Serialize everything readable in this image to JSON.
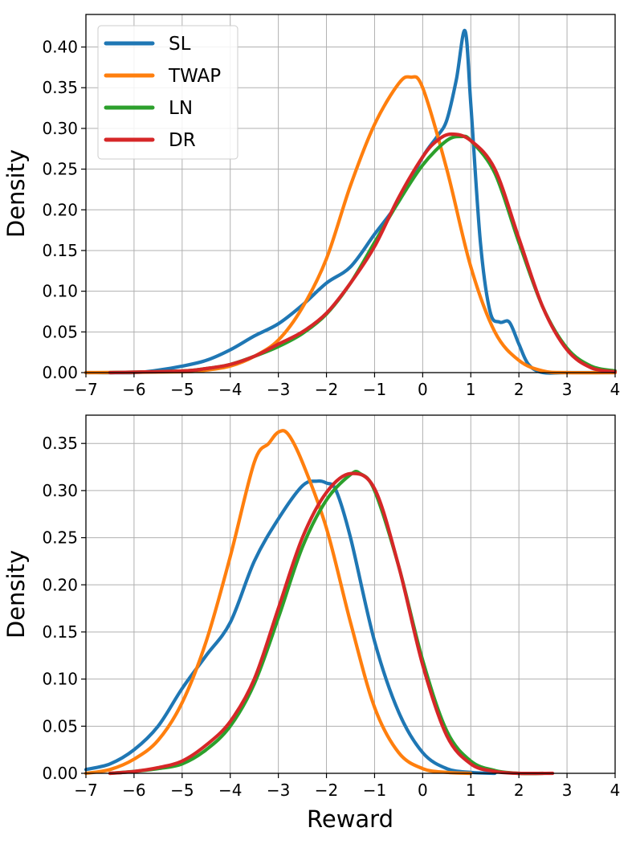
{
  "chart_data": [
    {
      "type": "line",
      "panel": "top",
      "title": "",
      "xlabel": "",
      "ylabel": "Density",
      "xlim": [
        -7,
        4
      ],
      "ylim": [
        0,
        0.44
      ],
      "xticks": [
        -7,
        -6,
        -5,
        -4,
        -3,
        -2,
        -1,
        0,
        1,
        2,
        3,
        4
      ],
      "xtick_labels": [
        "−7",
        "−6",
        "−5",
        "−4",
        "−3",
        "−2",
        "−1",
        "0",
        "1",
        "2",
        "3",
        "4"
      ],
      "yticks": [
        0,
        0.05,
        0.1,
        0.15,
        0.2,
        0.25,
        0.3,
        0.35,
        0.4
      ],
      "ytick_labels": [
        "0.00",
        "0.05",
        "0.10",
        "0.15",
        "0.20",
        "0.25",
        "0.30",
        "0.35",
        "0.40"
      ],
      "grid": true,
      "legend_position": "top-left",
      "series": [
        {
          "name": "SL",
          "color": "#1f77b4",
          "x": [
            -7.0,
            -6.0,
            -5.5,
            -5.0,
            -4.5,
            -4.0,
            -3.5,
            -3.0,
            -2.5,
            -2.0,
            -1.5,
            -1.0,
            -0.5,
            0.0,
            0.3,
            0.5,
            0.7,
            0.88,
            1.0,
            1.2,
            1.4,
            1.6,
            1.8,
            2.0,
            2.2,
            2.5,
            3.0,
            4.0
          ],
          "y": [
            0.0,
            0.0,
            0.003,
            0.008,
            0.015,
            0.028,
            0.045,
            0.06,
            0.083,
            0.11,
            0.13,
            0.17,
            0.21,
            0.265,
            0.29,
            0.31,
            0.36,
            0.42,
            0.33,
            0.16,
            0.075,
            0.062,
            0.062,
            0.035,
            0.01,
            0.0,
            0.0,
            0.0
          ]
        },
        {
          "name": "TWAP",
          "color": "#ff7f0e",
          "x": [
            -7.0,
            -5.0,
            -4.5,
            -4.0,
            -3.5,
            -3.0,
            -2.5,
            -2.0,
            -1.5,
            -1.0,
            -0.5,
            -0.25,
            0.0,
            0.5,
            1.0,
            1.5,
            2.0,
            2.5,
            3.0,
            4.0
          ],
          "y": [
            0.0,
            0.001,
            0.003,
            0.008,
            0.02,
            0.04,
            0.08,
            0.14,
            0.23,
            0.305,
            0.355,
            0.363,
            0.35,
            0.25,
            0.13,
            0.05,
            0.015,
            0.002,
            0.0,
            0.0
          ]
        },
        {
          "name": "LN",
          "color": "#2ca02c",
          "x": [
            -6.5,
            -5.0,
            -4.5,
            -4.0,
            -3.5,
            -3.0,
            -2.5,
            -2.0,
            -1.5,
            -1.0,
            -0.5,
            0.0,
            0.5,
            0.8,
            1.0,
            1.5,
            2.0,
            2.5,
            3.0,
            3.5,
            4.0
          ],
          "y": [
            0.0,
            0.002,
            0.005,
            0.01,
            0.02,
            0.032,
            0.048,
            0.072,
            0.11,
            0.16,
            0.21,
            0.255,
            0.285,
            0.29,
            0.285,
            0.245,
            0.16,
            0.08,
            0.03,
            0.008,
            0.002
          ]
        },
        {
          "name": "DR",
          "color": "#d62728",
          "x": [
            -6.5,
            -5.0,
            -4.5,
            -4.0,
            -3.5,
            -3.0,
            -2.5,
            -2.0,
            -1.5,
            -1.0,
            -0.5,
            0.0,
            0.3,
            0.6,
            1.0,
            1.5,
            2.0,
            2.5,
            3.0,
            3.5,
            4.0
          ],
          "y": [
            0.0,
            0.002,
            0.005,
            0.01,
            0.02,
            0.035,
            0.05,
            0.073,
            0.11,
            0.155,
            0.215,
            0.265,
            0.285,
            0.293,
            0.285,
            0.25,
            0.165,
            0.08,
            0.028,
            0.006,
            0.001
          ]
        }
      ]
    },
    {
      "type": "line",
      "panel": "bottom",
      "title": "",
      "xlabel": "Reward",
      "ylabel": "Density",
      "xlim": [
        -7,
        4
      ],
      "ylim": [
        0,
        0.38
      ],
      "xticks": [
        -7,
        -6,
        -5,
        -4,
        -3,
        -2,
        -1,
        0,
        1,
        2,
        3,
        4
      ],
      "xtick_labels": [
        "−7",
        "−6",
        "−5",
        "−4",
        "−3",
        "−2",
        "−1",
        "0",
        "1",
        "2",
        "3",
        "4"
      ],
      "yticks": [
        0,
        0.05,
        0.1,
        0.15,
        0.2,
        0.25,
        0.3,
        0.35
      ],
      "ytick_labels": [
        "0.00",
        "0.05",
        "0.10",
        "0.15",
        "0.20",
        "0.25",
        "0.30",
        "0.35"
      ],
      "grid": true,
      "series": [
        {
          "name": "SL",
          "color": "#1f77b4",
          "x": [
            -7.0,
            -6.5,
            -6.0,
            -5.5,
            -5.0,
            -4.5,
            -4.0,
            -3.5,
            -3.0,
            -2.5,
            -2.2,
            -2.0,
            -1.8,
            -1.5,
            -1.0,
            -0.5,
            0.0,
            0.5,
            1.0,
            1.5
          ],
          "y": [
            0.004,
            0.01,
            0.025,
            0.05,
            0.09,
            0.125,
            0.16,
            0.225,
            0.27,
            0.305,
            0.31,
            0.308,
            0.3,
            0.25,
            0.14,
            0.065,
            0.022,
            0.005,
            0.001,
            0.0
          ]
        },
        {
          "name": "TWAP",
          "color": "#ff7f0e",
          "x": [
            -7.0,
            -6.5,
            -6.0,
            -5.5,
            -5.0,
            -4.5,
            -4.0,
            -3.5,
            -3.2,
            -3.0,
            -2.8,
            -2.5,
            -2.0,
            -1.5,
            -1.0,
            -0.5,
            0.0,
            0.5,
            1.0
          ],
          "y": [
            0.0,
            0.004,
            0.015,
            0.035,
            0.075,
            0.14,
            0.23,
            0.33,
            0.35,
            0.362,
            0.36,
            0.33,
            0.26,
            0.16,
            0.07,
            0.022,
            0.005,
            0.001,
            0.0
          ]
        },
        {
          "name": "LN",
          "color": "#2ca02c",
          "x": [
            -6.5,
            -6.0,
            -5.5,
            -5.0,
            -4.5,
            -4.0,
            -3.5,
            -3.0,
            -2.5,
            -2.0,
            -1.5,
            -1.3,
            -1.0,
            -0.5,
            0.0,
            0.5,
            1.0,
            1.5,
            2.0,
            2.5
          ],
          "y": [
            0.0,
            0.002,
            0.005,
            0.01,
            0.025,
            0.05,
            0.095,
            0.165,
            0.24,
            0.29,
            0.317,
            0.318,
            0.3,
            0.22,
            0.12,
            0.045,
            0.013,
            0.003,
            0.0,
            0.0
          ]
        },
        {
          "name": "DR",
          "color": "#d62728",
          "x": [
            -6.5,
            -6.0,
            -5.5,
            -5.0,
            -4.5,
            -4.0,
            -3.5,
            -3.0,
            -2.5,
            -2.0,
            -1.5,
            -1.0,
            -0.5,
            0.0,
            0.5,
            1.0,
            1.5,
            2.0,
            2.7
          ],
          "y": [
            0.0,
            0.002,
            0.006,
            0.013,
            0.03,
            0.055,
            0.1,
            0.175,
            0.25,
            0.298,
            0.318,
            0.302,
            0.22,
            0.115,
            0.04,
            0.01,
            0.002,
            0.0,
            0.0
          ]
        }
      ]
    }
  ]
}
